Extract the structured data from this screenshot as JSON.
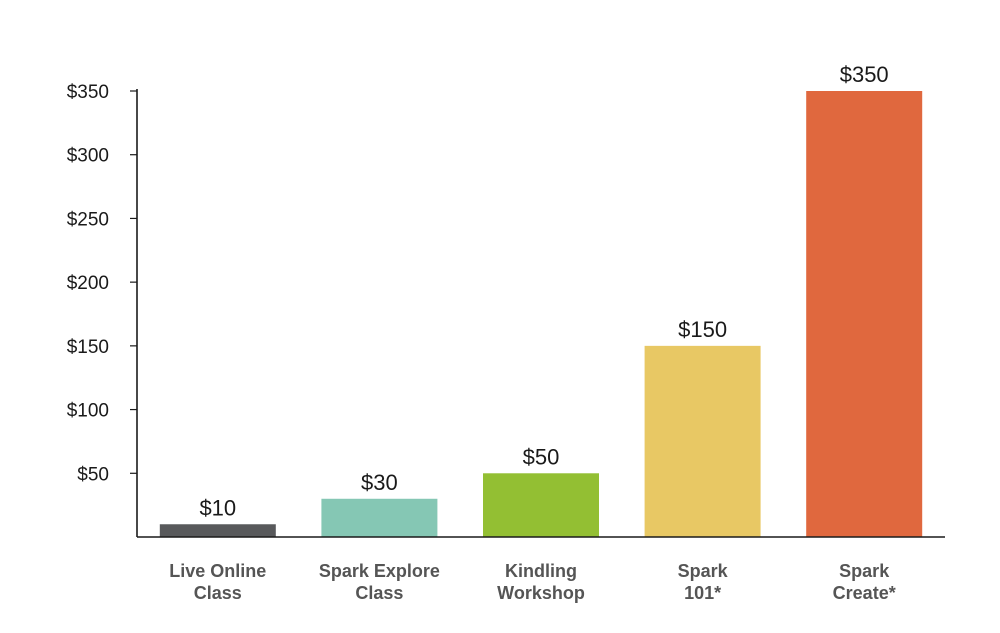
{
  "chart_data": {
    "type": "bar",
    "categories": [
      [
        "Live Online",
        "Class"
      ],
      [
        "Spark Explore",
        "Class"
      ],
      [
        "Kindling",
        "Workshop"
      ],
      [
        "Spark",
        "101*"
      ],
      [
        "Spark",
        "Create*"
      ]
    ],
    "values": [
      10,
      30,
      50,
      150,
      350
    ],
    "data_labels": [
      "$10",
      "$30",
      "$50",
      "$150",
      "$350"
    ],
    "colors": [
      "#58595b",
      "#85c7b4",
      "#93bf33",
      "#e8c864",
      "#e0683e"
    ],
    "ylim": [
      0,
      350
    ],
    "y_ticks": [
      50,
      100,
      150,
      200,
      250,
      300,
      350
    ],
    "y_tick_labels": [
      "$50",
      "$100",
      "$150",
      "$200",
      "$250",
      "$300",
      "$350"
    ],
    "title": "",
    "xlabel": "",
    "ylabel": "",
    "grid": false,
    "legend": "none"
  }
}
